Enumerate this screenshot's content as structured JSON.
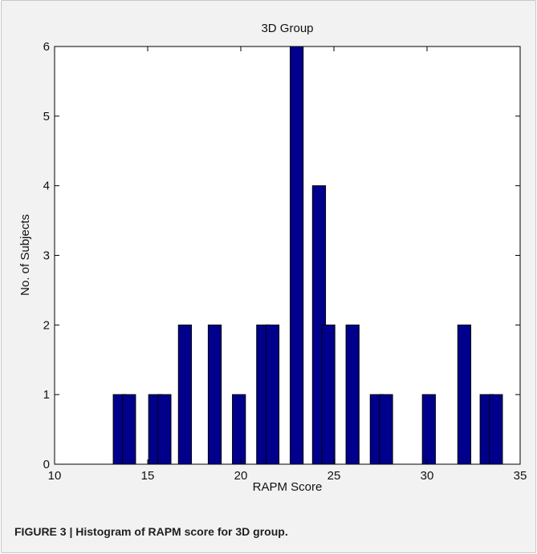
{
  "caption": "FIGURE 3 | Histogram of RAPM score for 3D group.",
  "colors": {
    "bar_fill": "#00008c",
    "bar_stroke": "#000000",
    "background": "#f2f2f2",
    "plot_area": "#ffffff"
  },
  "chart_data": {
    "type": "bar",
    "title": "3D Group",
    "xlabel": "RAPM Score",
    "ylabel": "No. of Subjects",
    "xlim": [
      10,
      35
    ],
    "ylim": [
      0,
      6
    ],
    "xticks": [
      10,
      15,
      20,
      25,
      30,
      35
    ],
    "yticks": [
      0,
      1,
      2,
      3,
      4,
      5,
      6
    ],
    "grid": false,
    "bin_width": 0.7,
    "bins": [
      {
        "x": 13.5,
        "count": 1
      },
      {
        "x": 14.0,
        "count": 1
      },
      {
        "x": 15.4,
        "count": 1
      },
      {
        "x": 15.9,
        "count": 1
      },
      {
        "x": 17.0,
        "count": 2
      },
      {
        "x": 18.6,
        "count": 2
      },
      {
        "x": 19.9,
        "count": 1
      },
      {
        "x": 21.2,
        "count": 2
      },
      {
        "x": 21.7,
        "count": 2
      },
      {
        "x": 23.0,
        "count": 6
      },
      {
        "x": 24.2,
        "count": 4
      },
      {
        "x": 24.7,
        "count": 2
      },
      {
        "x": 26.0,
        "count": 2
      },
      {
        "x": 27.3,
        "count": 1
      },
      {
        "x": 27.8,
        "count": 1
      },
      {
        "x": 30.1,
        "count": 1
      },
      {
        "x": 32.0,
        "count": 2
      },
      {
        "x": 33.2,
        "count": 1
      },
      {
        "x": 33.7,
        "count": 1
      }
    ]
  }
}
